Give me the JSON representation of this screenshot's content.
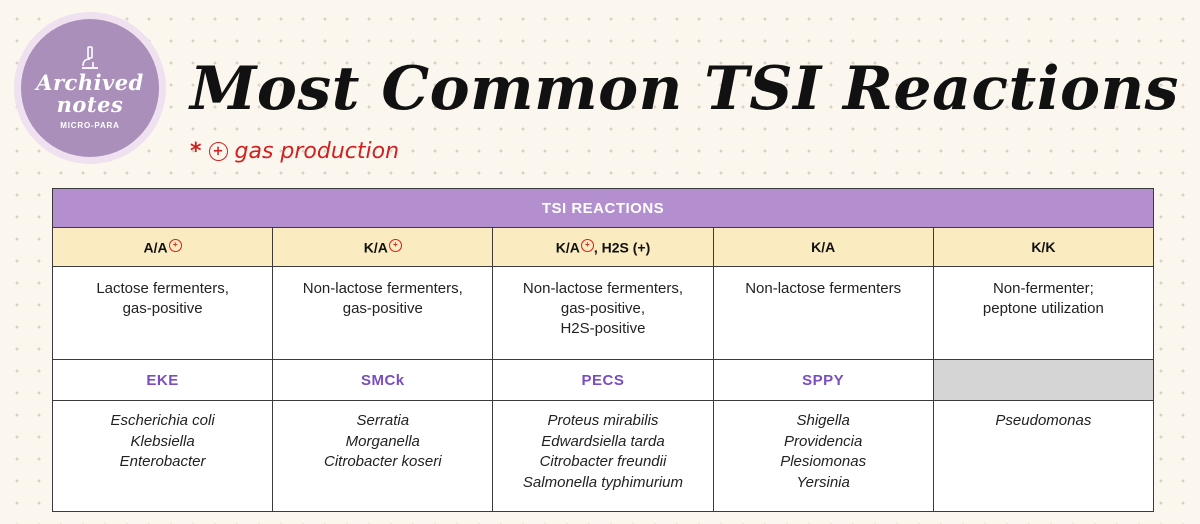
{
  "badge": {
    "title_line1": "Archived",
    "title_line2": "notes",
    "subtitle": "MICRO-PARA",
    "icon": "microscope-icon"
  },
  "title": "Most Common TSI Reactions",
  "note": {
    "marker": "*",
    "symbol": "+",
    "text": "gas production"
  },
  "colors": {
    "header_bg": "#b48fcf",
    "reaction_row_bg": "#faecc0",
    "mnemonic_text": "#7b4ebf",
    "note_red": "#d21f1f",
    "empty_cell": "#d5d5d5"
  },
  "table": {
    "header": "TSI REACTIONS",
    "columns": [
      {
        "reaction": "A/A",
        "gas_marker": "+",
        "extra": "",
        "description": [
          "Lactose fermenters,",
          "gas-positive"
        ],
        "mnemonic": "EKE",
        "organisms": [
          "Escherichia coli",
          "Klebsiella",
          "Enterobacter"
        ]
      },
      {
        "reaction": "K/A",
        "gas_marker": "+",
        "extra": "",
        "description": [
          "Non-lactose fermenters,",
          "gas-positive"
        ],
        "mnemonic": "SMCk",
        "organisms": [
          "Serratia",
          "Morganella",
          "Citrobacter koseri"
        ]
      },
      {
        "reaction": "K/A",
        "gas_marker": "+",
        "extra": ", H2S (+)",
        "description": [
          "Non-lactose fermenters,",
          "gas-positive,",
          "H2S-positive"
        ],
        "mnemonic": "PECS",
        "organisms": [
          "Proteus mirabilis",
          "Edwardsiella tarda",
          "Citrobacter freundii",
          "Salmonella typhimurium"
        ]
      },
      {
        "reaction": "K/A",
        "gas_marker": "",
        "extra": "",
        "description": [
          "Non-lactose fermenters"
        ],
        "mnemonic": "SPPY",
        "organisms": [
          "Shigella",
          "Providencia",
          "Plesiomonas",
          "Yersinia"
        ]
      },
      {
        "reaction": "K/K",
        "gas_marker": "",
        "extra": "",
        "description": [
          "Non-fermenter;",
          "peptone utilization"
        ],
        "mnemonic": "",
        "organisms": [
          "Pseudomonas"
        ]
      }
    ]
  }
}
